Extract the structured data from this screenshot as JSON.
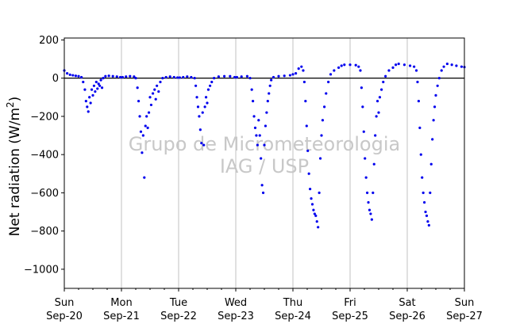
{
  "chart_data": {
    "type": "scatter",
    "title": "",
    "ylabel": "Net radiation (W/m²)",
    "ylabel_parts": [
      "Net radiation (W/m",
      "2",
      ")"
    ],
    "xlabel": "",
    "ylim": [
      -1100,
      210
    ],
    "xlim": [
      0,
      7
    ],
    "yticks": [
      200,
      0,
      -200,
      -400,
      -600,
      -800,
      -1000
    ],
    "ytick_labels": [
      "200",
      "0",
      "−200",
      "−400",
      "−600",
      "−800",
      "−1000"
    ],
    "xticks": [
      {
        "day": 0,
        "weekday": "Sun",
        "date": "Sep-20"
      },
      {
        "day": 1,
        "weekday": "Mon",
        "date": "Sep-21"
      },
      {
        "day": 2,
        "weekday": "Tue",
        "date": "Sep-22"
      },
      {
        "day": 3,
        "weekday": "Wed",
        "date": "Sep-23"
      },
      {
        "day": 4,
        "weekday": "Thu",
        "date": "Sep-24"
      },
      {
        "day": 5,
        "weekday": "Fri",
        "date": "Sep-25"
      },
      {
        "day": 6,
        "weekday": "Sat",
        "date": "Sep-26"
      },
      {
        "day": 7,
        "weekday": "Sun",
        "date": "Sep-27"
      }
    ],
    "grid": "vertical",
    "zero_line": 0,
    "series_color": "#0000ee",
    "grid_color": "#c0c0c0",
    "watermark": [
      "Grupo de Micrometeorologia",
      "IAG / USP"
    ],
    "watermark_color": "#c8c8c8",
    "series": [
      {
        "name": "",
        "points": [
          [
            0.0,
            40
          ],
          [
            0.05,
            25
          ],
          [
            0.1,
            18
          ],
          [
            0.15,
            15
          ],
          [
            0.2,
            12
          ],
          [
            0.25,
            10
          ],
          [
            0.3,
            5
          ],
          [
            0.33,
            -20
          ],
          [
            0.36,
            -60
          ],
          [
            0.38,
            -120
          ],
          [
            0.4,
            -150
          ],
          [
            0.42,
            -175
          ],
          [
            0.44,
            -100
          ],
          [
            0.46,
            -130
          ],
          [
            0.48,
            -60
          ],
          [
            0.5,
            -90
          ],
          [
            0.52,
            -40
          ],
          [
            0.54,
            -70
          ],
          [
            0.56,
            -20
          ],
          [
            0.58,
            -55
          ],
          [
            0.6,
            -30
          ],
          [
            0.62,
            -40
          ],
          [
            0.64,
            -10
          ],
          [
            0.66,
            -50
          ],
          [
            0.68,
            0
          ],
          [
            0.72,
            10
          ],
          [
            0.78,
            12
          ],
          [
            0.85,
            10
          ],
          [
            0.92,
            8
          ],
          [
            0.98,
            5
          ],
          [
            1.02,
            5
          ],
          [
            1.08,
            8
          ],
          [
            1.15,
            10
          ],
          [
            1.22,
            8
          ],
          [
            1.25,
            0
          ],
          [
            1.28,
            -50
          ],
          [
            1.3,
            -120
          ],
          [
            1.32,
            -200
          ],
          [
            1.34,
            -280
          ],
          [
            1.36,
            -390
          ],
          [
            1.38,
            -300
          ],
          [
            1.4,
            -520
          ],
          [
            1.42,
            -250
          ],
          [
            1.44,
            -200
          ],
          [
            1.46,
            -260
          ],
          [
            1.48,
            -180
          ],
          [
            1.5,
            -100
          ],
          [
            1.52,
            -140
          ],
          [
            1.55,
            -80
          ],
          [
            1.58,
            -60
          ],
          [
            1.6,
            -110
          ],
          [
            1.62,
            -40
          ],
          [
            1.65,
            -70
          ],
          [
            1.68,
            -20
          ],
          [
            1.72,
            0
          ],
          [
            1.78,
            5
          ],
          [
            1.85,
            8
          ],
          [
            1.92,
            5
          ],
          [
            1.98,
            3
          ],
          [
            2.02,
            3
          ],
          [
            2.08,
            5
          ],
          [
            2.15,
            8
          ],
          [
            2.22,
            5
          ],
          [
            2.28,
            0
          ],
          [
            2.3,
            -40
          ],
          [
            2.32,
            -100
          ],
          [
            2.34,
            -150
          ],
          [
            2.36,
            -200
          ],
          [
            2.38,
            -270
          ],
          [
            2.4,
            -340
          ],
          [
            2.42,
            -180
          ],
          [
            2.44,
            -350
          ],
          [
            2.46,
            -150
          ],
          [
            2.48,
            -100
          ],
          [
            2.5,
            -130
          ],
          [
            2.52,
            -60
          ],
          [
            2.55,
            -40
          ],
          [
            2.58,
            -20
          ],
          [
            2.62,
            0
          ],
          [
            2.7,
            8
          ],
          [
            2.8,
            10
          ],
          [
            2.9,
            10
          ],
          [
            2.98,
            5
          ],
          [
            3.02,
            5
          ],
          [
            3.1,
            8
          ],
          [
            3.2,
            10
          ],
          [
            3.25,
            0
          ],
          [
            3.28,
            -60
          ],
          [
            3.3,
            -120
          ],
          [
            3.32,
            -200
          ],
          [
            3.34,
            -260
          ],
          [
            3.36,
            -300
          ],
          [
            3.38,
            -350
          ],
          [
            3.4,
            -220
          ],
          [
            3.42,
            -300
          ],
          [
            3.44,
            -420
          ],
          [
            3.46,
            -560
          ],
          [
            3.48,
            -600
          ],
          [
            3.5,
            -350
          ],
          [
            3.52,
            -250
          ],
          [
            3.54,
            -180
          ],
          [
            3.56,
            -120
          ],
          [
            3.58,
            -80
          ],
          [
            3.6,
            -40
          ],
          [
            3.62,
            -10
          ],
          [
            3.66,
            5
          ],
          [
            3.75,
            10
          ],
          [
            3.85,
            12
          ],
          [
            3.95,
            15
          ],
          [
            4.0,
            20
          ],
          [
            4.05,
            25
          ],
          [
            4.1,
            50
          ],
          [
            4.15,
            60
          ],
          [
            4.18,
            40
          ],
          [
            4.2,
            -20
          ],
          [
            4.22,
            -120
          ],
          [
            4.24,
            -250
          ],
          [
            4.26,
            -380
          ],
          [
            4.28,
            -500
          ],
          [
            4.3,
            -580
          ],
          [
            4.32,
            -630
          ],
          [
            4.34,
            -660
          ],
          [
            4.36,
            -690
          ],
          [
            4.38,
            -710
          ],
          [
            4.4,
            -720
          ],
          [
            4.42,
            -750
          ],
          [
            4.44,
            -780
          ],
          [
            4.46,
            -600
          ],
          [
            4.48,
            -420
          ],
          [
            4.5,
            -300
          ],
          [
            4.52,
            -220
          ],
          [
            4.55,
            -150
          ],
          [
            4.58,
            -80
          ],
          [
            4.62,
            -20
          ],
          [
            4.66,
            20
          ],
          [
            4.72,
            40
          ],
          [
            4.8,
            55
          ],
          [
            4.85,
            65
          ],
          [
            4.9,
            70
          ],
          [
            5.0,
            70
          ],
          [
            5.1,
            68
          ],
          [
            5.15,
            60
          ],
          [
            5.18,
            40
          ],
          [
            5.2,
            -50
          ],
          [
            5.22,
            -150
          ],
          [
            5.24,
            -280
          ],
          [
            5.26,
            -420
          ],
          [
            5.28,
            -520
          ],
          [
            5.3,
            -600
          ],
          [
            5.32,
            -650
          ],
          [
            5.34,
            -690
          ],
          [
            5.36,
            -710
          ],
          [
            5.38,
            -740
          ],
          [
            5.4,
            -600
          ],
          [
            5.42,
            -450
          ],
          [
            5.44,
            -300
          ],
          [
            5.46,
            -200
          ],
          [
            5.48,
            -120
          ],
          [
            5.5,
            -180
          ],
          [
            5.52,
            -100
          ],
          [
            5.55,
            -60
          ],
          [
            5.58,
            -20
          ],
          [
            5.62,
            10
          ],
          [
            5.68,
            40
          ],
          [
            5.75,
            55
          ],
          [
            5.8,
            70
          ],
          [
            5.85,
            75
          ],
          [
            5.95,
            70
          ],
          [
            6.05,
            65
          ],
          [
            6.12,
            60
          ],
          [
            6.16,
            40
          ],
          [
            6.18,
            -20
          ],
          [
            6.2,
            -120
          ],
          [
            6.22,
            -260
          ],
          [
            6.24,
            -400
          ],
          [
            6.26,
            -520
          ],
          [
            6.28,
            -600
          ],
          [
            6.3,
            -650
          ],
          [
            6.32,
            -700
          ],
          [
            6.34,
            -720
          ],
          [
            6.36,
            -750
          ],
          [
            6.38,
            -770
          ],
          [
            6.4,
            -600
          ],
          [
            6.42,
            -450
          ],
          [
            6.44,
            -320
          ],
          [
            6.46,
            -220
          ],
          [
            6.48,
            -150
          ],
          [
            6.5,
            -90
          ],
          [
            6.53,
            -40
          ],
          [
            6.56,
            0
          ],
          [
            6.6,
            40
          ],
          [
            6.64,
            60
          ],
          [
            6.7,
            75
          ],
          [
            6.78,
            70
          ],
          [
            6.86,
            65
          ],
          [
            6.95,
            60
          ],
          [
            7.0,
            58
          ]
        ]
      }
    ]
  }
}
